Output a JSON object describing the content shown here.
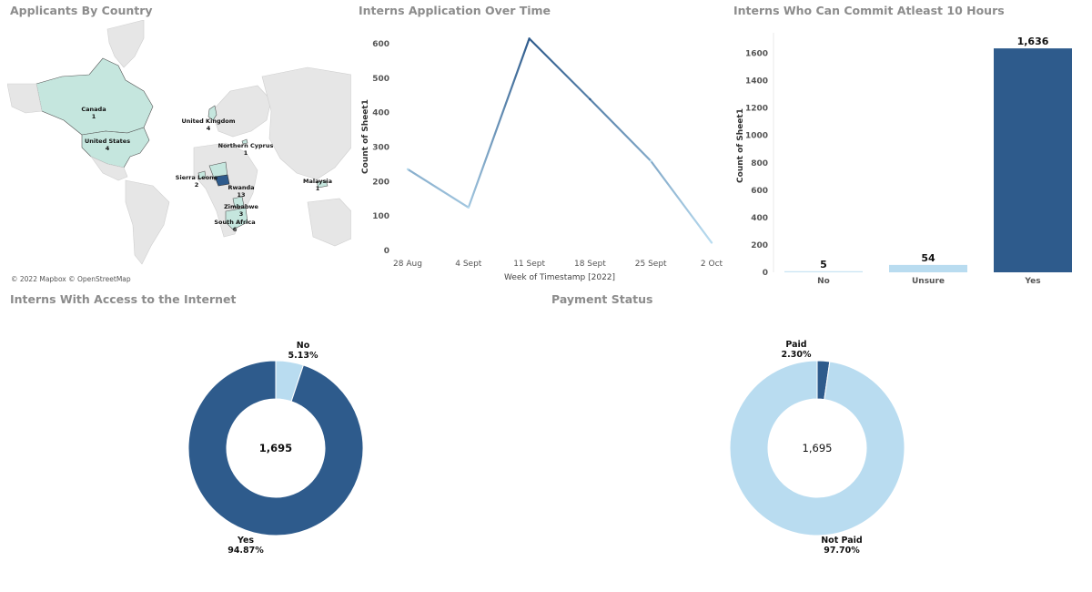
{
  "map": {
    "title": "Applicants By Country",
    "credit": "© 2022 Mapbox © OpenStreetMap",
    "highlight_color": "#c5e6de",
    "strong_color": "#2e5b8c",
    "labels": [
      {
        "name": "Canada",
        "value": "1"
      },
      {
        "name": "United States",
        "value": "4"
      },
      {
        "name": "United Kingdom",
        "value": "4"
      },
      {
        "name": "Northern Cyprus",
        "value": "1"
      },
      {
        "name": "Sierra Leone",
        "value": "2"
      },
      {
        "name": "Rwanda",
        "value": "13"
      },
      {
        "name": "Zimbabwe",
        "value": "3"
      },
      {
        "name": "South Africa",
        "value": "6"
      },
      {
        "name": "Malaysia",
        "value": "1"
      }
    ]
  },
  "chart_data": [
    {
      "type": "line",
      "title": "Interns Application Over Time",
      "xlabel": "Week of Timestamp [2022]",
      "ylabel": "Count of Sheet1",
      "x": [
        "28 Aug",
        "4 Sept",
        "11 Sept",
        "18 Sept",
        "25 Sept",
        "2 Oct"
      ],
      "values": [
        233,
        122,
        612,
        436,
        257,
        20
      ],
      "y_ticks": [
        0,
        100,
        200,
        300,
        400,
        500,
        600
      ],
      "ylim": [
        0,
        650
      ],
      "color_low": "#b9dcf0",
      "color_high": "#2e5b8c"
    },
    {
      "type": "bar",
      "title": "Interns Who Can Commit Atleast 10 Hours",
      "ylabel": "Count of Sheet1",
      "categories": [
        "No",
        "Unsure",
        "Yes"
      ],
      "values": [
        5,
        54,
        1636
      ],
      "data_labels": [
        "5",
        "54",
        "1,636"
      ],
      "y_ticks": [
        0,
        200,
        400,
        600,
        800,
        1000,
        1200,
        1400,
        1600
      ],
      "ylim": [
        0,
        1750
      ],
      "colors": [
        "#c7e3f3",
        "#b9dcf0",
        "#2e5b8c"
      ]
    },
    {
      "type": "pie",
      "title": "Interns With Access to the Internet",
      "center_label": "1,695",
      "slices": [
        {
          "label": "No",
          "percent_label": "5.13%",
          "value": 5.13,
          "color": "#b9dcf0"
        },
        {
          "label": "Yes",
          "percent_label": "94.87%",
          "value": 94.87,
          "color": "#2e5b8c"
        }
      ]
    },
    {
      "type": "pie",
      "title": "Payment Status",
      "center_label": "1,695",
      "slices": [
        {
          "label": "Paid",
          "percent_label": "2.30%",
          "value": 2.3,
          "color": "#2e5b8c"
        },
        {
          "label": "Not Paid",
          "percent_label": "97.70%",
          "value": 97.7,
          "color": "#b9dcf0"
        }
      ]
    }
  ]
}
